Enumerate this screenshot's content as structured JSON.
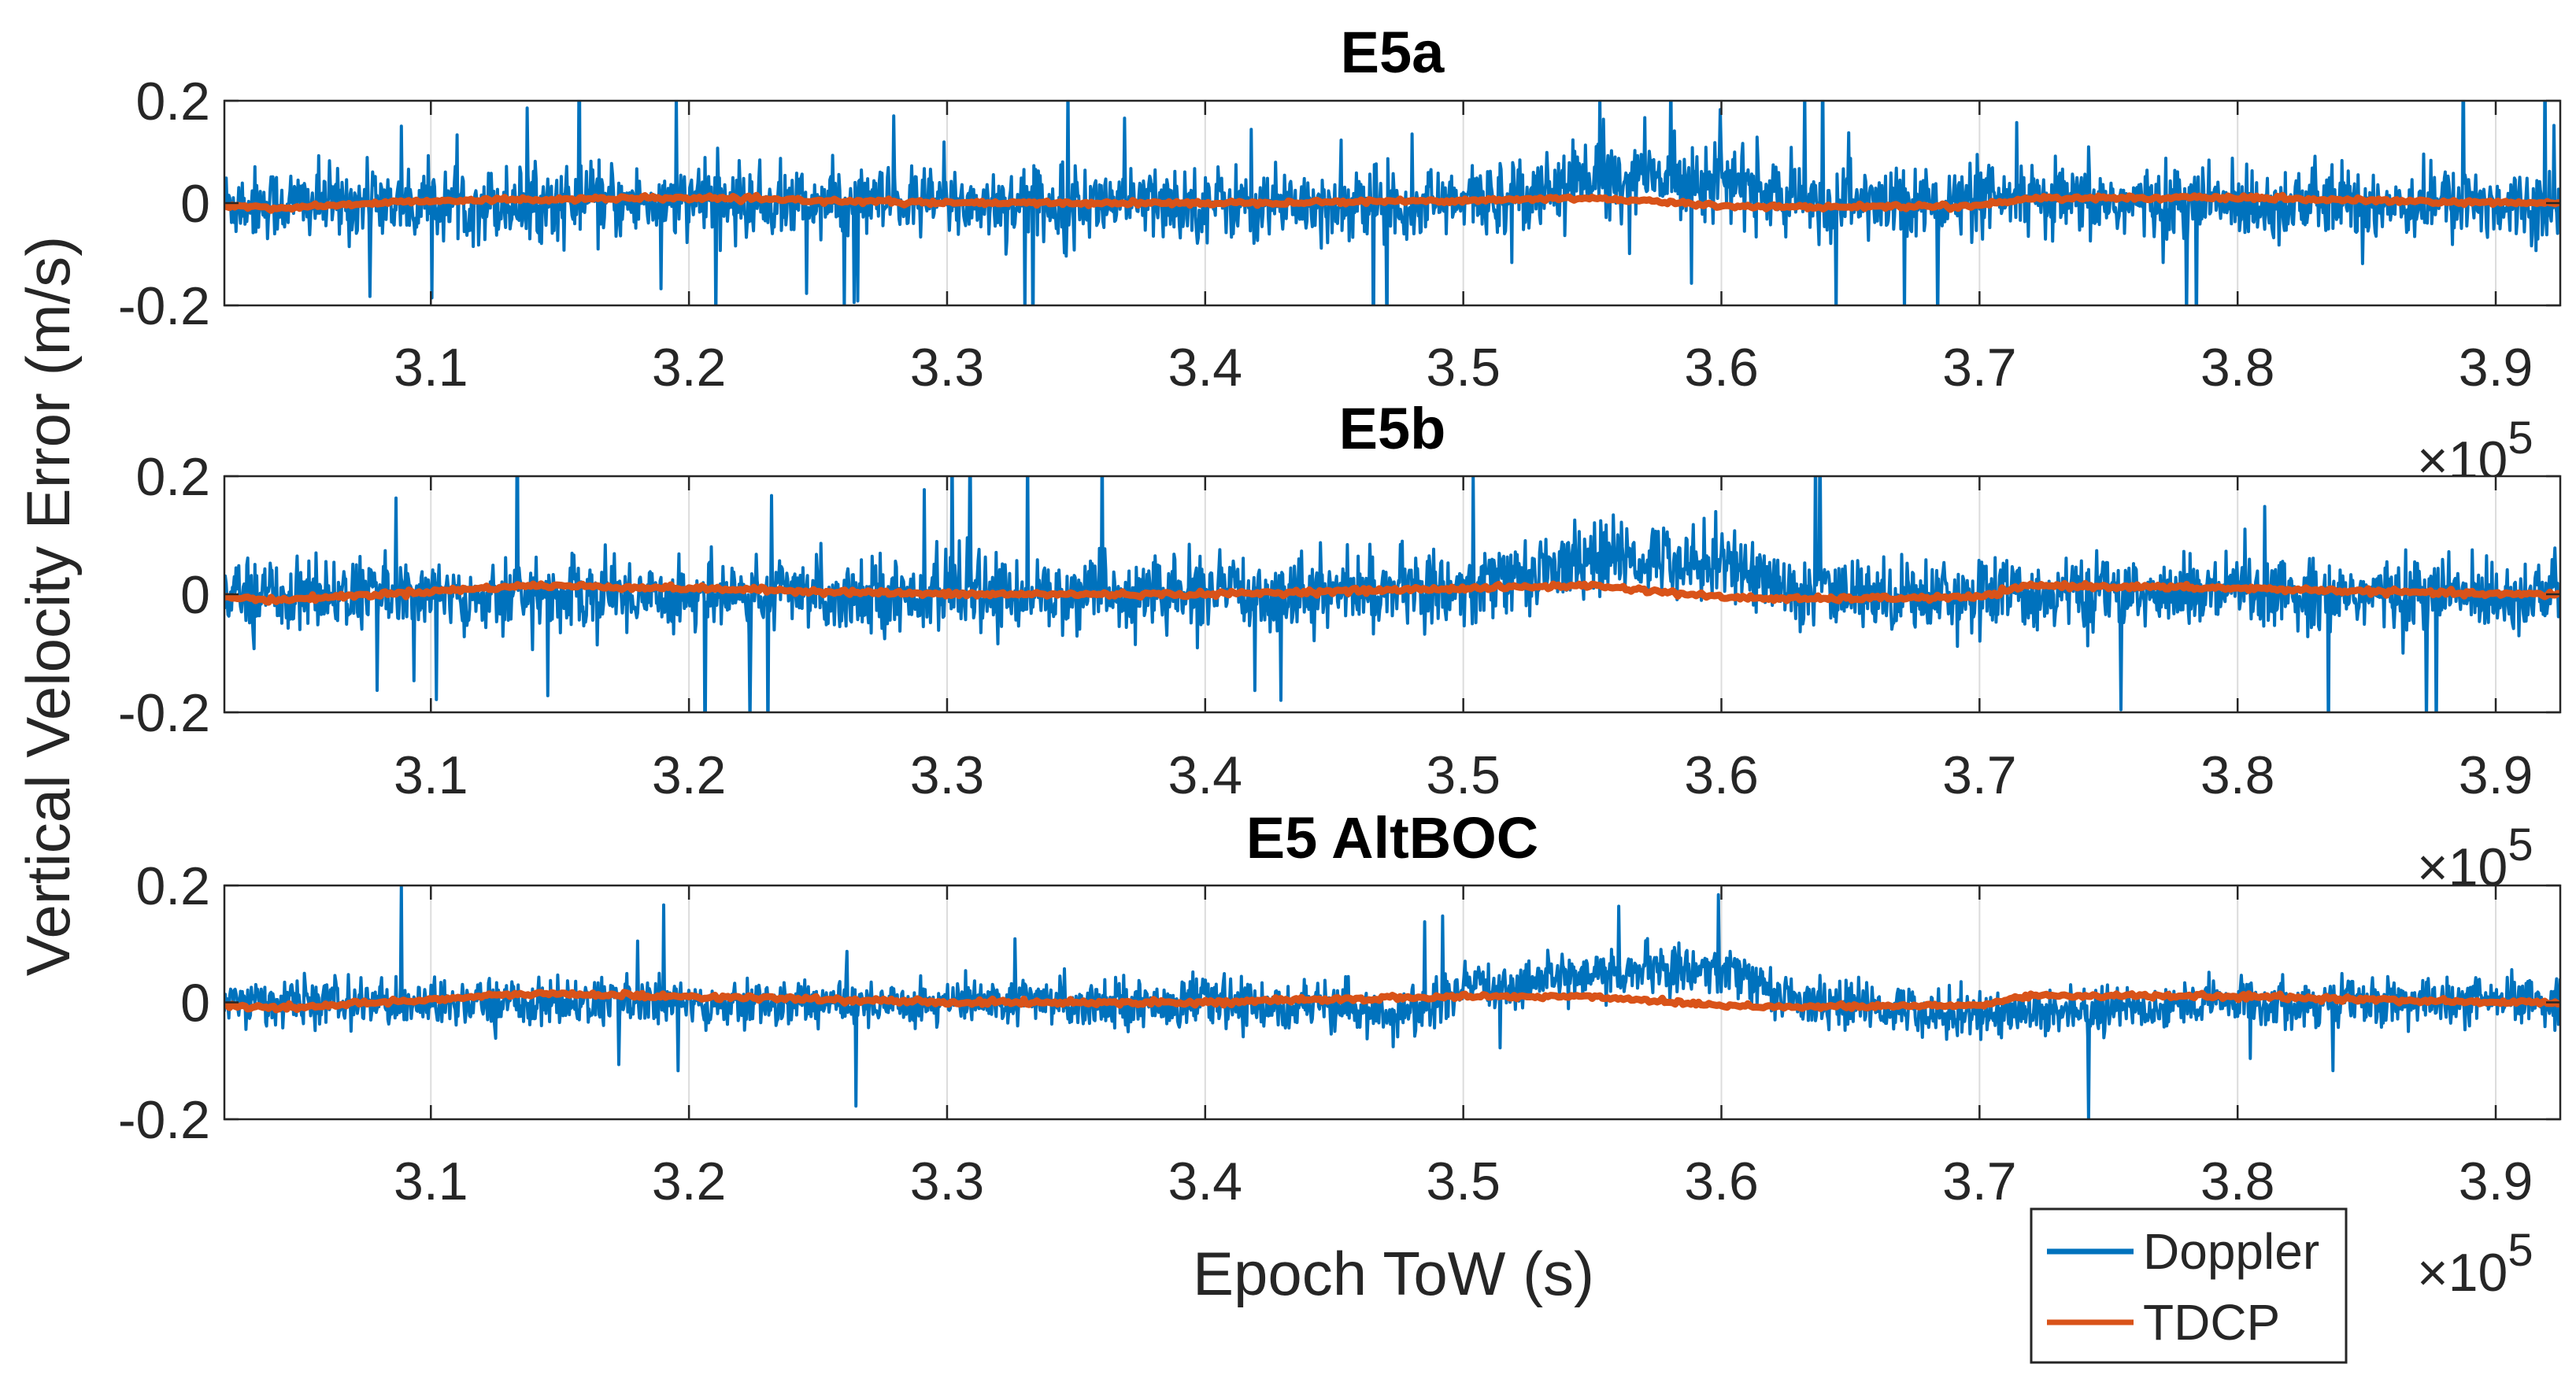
{
  "chart_data": [
    {
      "type": "line",
      "title": "E5a",
      "xlim": [
        302000,
        392500
      ],
      "ylim": [
        -0.2,
        0.2
      ],
      "x_ticks": [
        310000,
        320000,
        330000,
        340000,
        350000,
        360000,
        370000,
        380000,
        390000
      ],
      "x_tick_labels": [
        "3.1",
        "3.2",
        "3.3",
        "3.4",
        "3.5",
        "3.6",
        "3.7",
        "3.8",
        "3.9"
      ],
      "y_ticks": [
        -0.2,
        0,
        0.2
      ],
      "y_tick_labels": [
        "-0.2",
        "0",
        "0.2"
      ],
      "x_exponent_label": "×10",
      "x_exponent": "5",
      "grid": "vertical",
      "series": [
        {
          "name": "Doppler",
          "color": "#0072BD",
          "noise_std": 0.035,
          "spike_rate": 0.012,
          "spike_amp": 0.2,
          "x_sample": [
            302000,
            310000,
            320000,
            330000,
            340000,
            350000,
            355000,
            360000,
            363000,
            370000,
            380000,
            390000,
            392500
          ],
          "y_sample": [
            0.0,
            0.0,
            0.0,
            0.0,
            0.0,
            0.0,
            0.05,
            0.05,
            0.0,
            0.0,
            0.0,
            0.0,
            0.0
          ]
        },
        {
          "name": "TDCP",
          "color": "#D95319",
          "x_sample": [
            302000,
            304000,
            310000,
            320000,
            330000,
            340000,
            350000,
            355000,
            360000,
            363000,
            370000,
            372000,
            380000,
            390000,
            392500
          ],
          "y_sample": [
            -0.005,
            -0.01,
            0.005,
            0.01,
            0.0,
            0.0,
            0.005,
            0.01,
            -0.005,
            -0.008,
            -0.005,
            0.01,
            0.01,
            0.0,
            0.0
          ]
        }
      ]
    },
    {
      "type": "line",
      "title": "E5b",
      "xlim": [
        302000,
        392500
      ],
      "ylim": [
        -0.2,
        0.2
      ],
      "x_ticks": [
        310000,
        320000,
        330000,
        340000,
        350000,
        360000,
        370000,
        380000,
        390000
      ],
      "x_tick_labels": [
        "3.1",
        "3.2",
        "3.3",
        "3.4",
        "3.5",
        "3.6",
        "3.7",
        "3.8",
        "3.9"
      ],
      "y_ticks": [
        -0.2,
        0,
        0.2
      ],
      "y_tick_labels": [
        "-0.2",
        "0",
        "0.2"
      ],
      "x_exponent_label": "×10",
      "x_exponent": "5",
      "grid": "vertical",
      "series": [
        {
          "name": "Doppler",
          "color": "#0072BD",
          "noise_std": 0.03,
          "spike_rate": 0.01,
          "spike_amp": 0.2,
          "x_sample": [
            302000,
            310000,
            320000,
            330000,
            340000,
            350000,
            355000,
            360000,
            363000,
            370000,
            380000,
            390000,
            392500
          ],
          "y_sample": [
            0.0,
            0.0,
            0.0,
            0.0,
            0.0,
            0.01,
            0.06,
            0.06,
            0.0,
            0.0,
            0.0,
            0.0,
            0.0
          ]
        },
        {
          "name": "TDCP",
          "color": "#D95319",
          "x_sample": [
            302000,
            304000,
            310000,
            314000,
            320000,
            330000,
            340000,
            350000,
            355000,
            360000,
            363000,
            370000,
            372000,
            380000,
            390000,
            392500
          ],
          "y_sample": [
            -0.005,
            -0.01,
            0.005,
            0.015,
            0.01,
            0.0,
            0.0,
            0.01,
            0.015,
            -0.005,
            -0.008,
            -0.005,
            0.015,
            0.01,
            0.0,
            0.0
          ]
        }
      ]
    },
    {
      "type": "line",
      "title": "E5 AltBOC",
      "xlim": [
        302000,
        392500
      ],
      "ylim": [
        -0.2,
        0.2
      ],
      "x_ticks": [
        310000,
        320000,
        330000,
        340000,
        350000,
        360000,
        370000,
        380000,
        390000
      ],
      "x_tick_labels": [
        "3.1",
        "3.2",
        "3.3",
        "3.4",
        "3.5",
        "3.6",
        "3.7",
        "3.8",
        "3.9"
      ],
      "y_ticks": [
        -0.2,
        0,
        0.2
      ],
      "y_tick_labels": [
        "-0.2",
        "0",
        "0.2"
      ],
      "x_exponent_label": "×10",
      "x_exponent": "5",
      "grid": "vertical",
      "series": [
        {
          "name": "Doppler",
          "color": "#0072BD",
          "noise_std": 0.02,
          "spike_rate": 0.006,
          "spike_amp": 0.13,
          "x_sample": [
            302000,
            310000,
            320000,
            330000,
            340000,
            345000,
            348000,
            350000,
            355000,
            360000,
            363000,
            370000,
            380000,
            390000,
            392500
          ],
          "y_sample": [
            0.0,
            0.0,
            0.0,
            0.0,
            0.0,
            -0.01,
            -0.02,
            0.02,
            0.05,
            0.06,
            0.0,
            -0.02,
            0.0,
            0.0,
            0.0
          ]
        },
        {
          "name": "TDCP",
          "color": "#D95319",
          "x_sample": [
            302000,
            304000,
            310000,
            314000,
            320000,
            330000,
            340000,
            350000,
            355000,
            360000,
            363000,
            370000,
            372000,
            380000,
            390000,
            392500
          ],
          "y_sample": [
            -0.005,
            -0.01,
            0.005,
            0.015,
            0.01,
            0.0,
            0.0,
            0.01,
            0.01,
            -0.005,
            -0.008,
            -0.005,
            0.012,
            0.01,
            0.0,
            0.0
          ]
        }
      ]
    }
  ],
  "shared": {
    "ylabel": "Vertical Velocity Error (m/s)",
    "xlabel": "Epoch ToW (s)",
    "legend": {
      "position": "bottom-right",
      "entries": [
        {
          "label": "Doppler",
          "color": "#0072BD"
        },
        {
          "label": "TDCP",
          "color": "#D95319"
        }
      ]
    }
  }
}
